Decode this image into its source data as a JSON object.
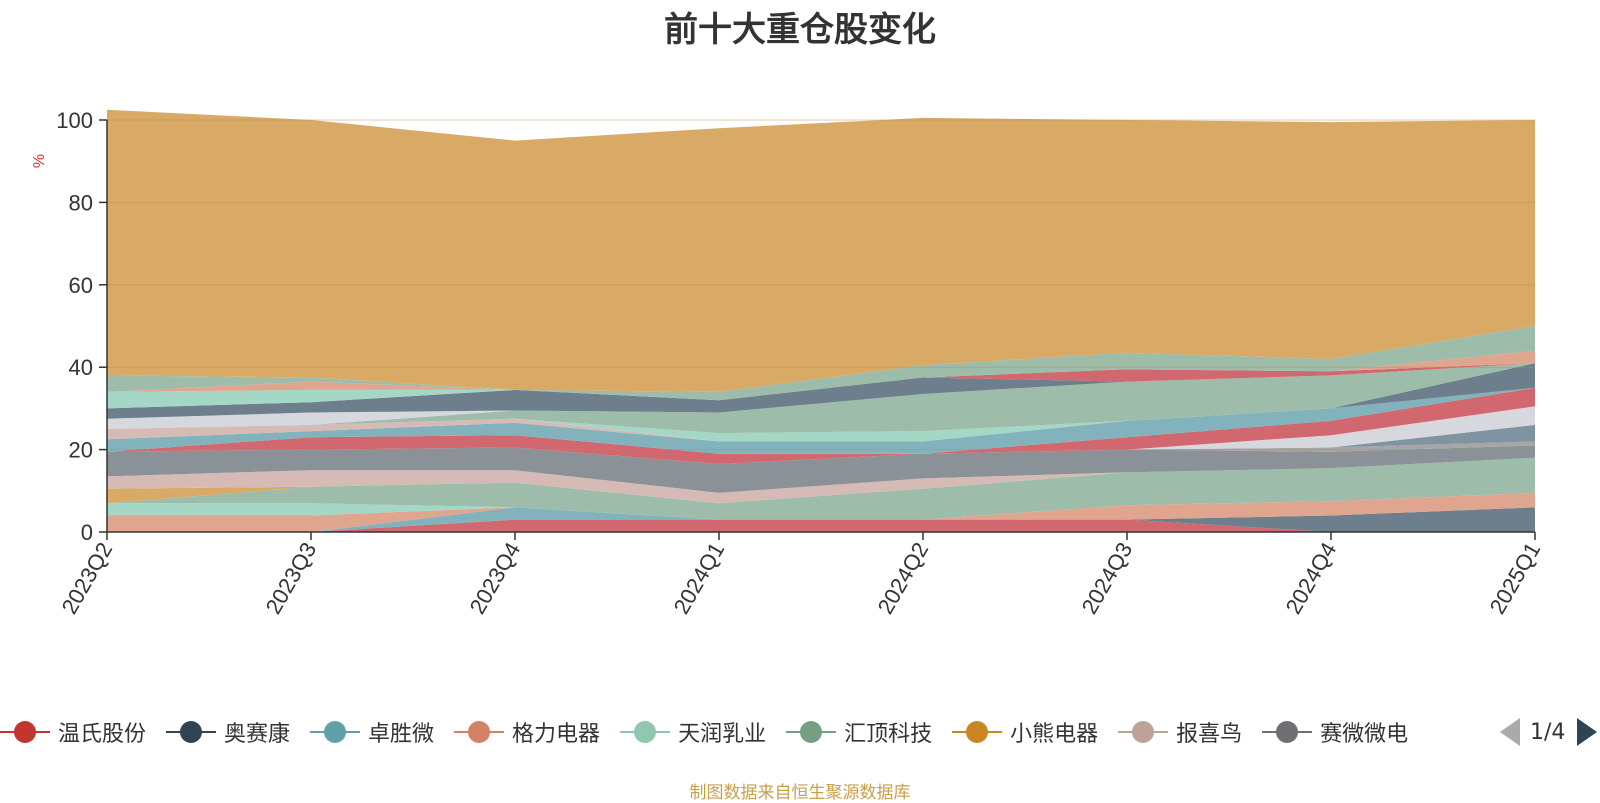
{
  "chart_data": {
    "type": "area",
    "stacked": true,
    "title": "前十大重仓股变化",
    "ylabel": "%",
    "ylim": [
      0,
      100
    ],
    "yticks": [
      0,
      20,
      40,
      60,
      80,
      100
    ],
    "grid": true,
    "categories": [
      "2023Q2",
      "2023Q3",
      "2023Q4",
      "2024Q1",
      "2024Q2",
      "2024Q3",
      "2024Q4",
      "2025Q1"
    ],
    "series": [
      {
        "name": "温氏股份",
        "color": "#d1676f",
        "values": [
          0,
          0,
          3,
          3,
          3,
          3,
          0,
          0
        ]
      },
      {
        "name": "奥赛康",
        "color": "#6d7f8c",
        "values": [
          0,
          0,
          0,
          0,
          0,
          0,
          4,
          6
        ]
      },
      {
        "name": "卓胜微",
        "color": "#82b3bd",
        "values": [
          0,
          0,
          3,
          0,
          0,
          0,
          0,
          0
        ]
      },
      {
        "name": "格力电器",
        "color": "#e0a58f",
        "values": [
          4,
          4,
          0,
          0,
          0,
          3.5,
          3.5,
          3.5
        ]
      },
      {
        "name": "天润乳业",
        "color": "#a4d7c5",
        "values": [
          3,
          3,
          0,
          0,
          0,
          0,
          0,
          0
        ]
      },
      {
        "name": "汇顶科技",
        "color": "#9ebcaa",
        "values": [
          0,
          4,
          6,
          4,
          7.5,
          8,
          8,
          8.5
        ]
      },
      {
        "name": "小熊电器",
        "color": "#d9aa66",
        "values": [
          3.5,
          0,
          0,
          0,
          0,
          0,
          0,
          0
        ]
      },
      {
        "name": "报喜鸟",
        "color": "#d6bab5",
        "values": [
          3,
          4,
          3,
          2.5,
          2.5,
          0,
          0,
          0
        ]
      },
      {
        "name": "赛微微电",
        "color": "#8a9298",
        "values": [
          6,
          5,
          5.5,
          7,
          6,
          5.5,
          4,
          3
        ]
      },
      {
        "name": "",
        "color": "#a6a6a6",
        "values": [
          0,
          0,
          0,
          0,
          0,
          0,
          1,
          1
        ]
      },
      {
        "name": "",
        "color": "#8093a0",
        "values": [
          0,
          0,
          0,
          0,
          0,
          0,
          0,
          4
        ]
      },
      {
        "name": "",
        "color": "#d6d8de",
        "values": [
          0,
          0,
          0,
          0,
          0,
          0,
          3,
          4.5
        ]
      },
      {
        "name": "",
        "color": "#d1676f",
        "values": [
          0,
          3,
          3,
          2.5,
          0,
          3,
          3.5,
          4.5
        ]
      },
      {
        "name": "",
        "color": "#82b3bd",
        "values": [
          3,
          1.5,
          3,
          3,
          3,
          4,
          3,
          0
        ]
      },
      {
        "name": "",
        "color": "#6d7f8c",
        "values": [
          0,
          0,
          0,
          0,
          0,
          0,
          0,
          6
        ]
      },
      {
        "name": "",
        "color": "#9ebcaa",
        "values": [
          0,
          0,
          0,
          0,
          0,
          0,
          0,
          0
        ]
      },
      {
        "name": "",
        "color": "#d6bab5",
        "values": [
          2.5,
          1.5,
          1,
          0,
          0,
          0,
          0,
          0
        ]
      },
      {
        "name": "",
        "color": "#a4d7c5",
        "values": [
          0,
          0,
          0,
          2,
          2.5,
          0,
          0,
          0
        ]
      },
      {
        "name": "",
        "color": "#9ebcaa",
        "values": [
          0,
          0,
          2,
          5,
          9,
          9.5,
          8,
          0
        ]
      },
      {
        "name": "",
        "color": "#d6d8de",
        "values": [
          2.5,
          3,
          0,
          0,
          0,
          0,
          0,
          0
        ]
      },
      {
        "name": "",
        "color": "#6d7f8c",
        "values": [
          2.5,
          2.5,
          5,
          3,
          4,
          0,
          0,
          0
        ]
      },
      {
        "name": "",
        "color": "#d1676f",
        "values": [
          0,
          0,
          0,
          0,
          0,
          3,
          1,
          0
        ]
      },
      {
        "name": "",
        "color": "#a4d7c5",
        "values": [
          4,
          3,
          0,
          0,
          0,
          0,
          0,
          0
        ]
      },
      {
        "name": "",
        "color": "#e0a58f",
        "values": [
          0,
          2,
          0,
          0,
          0,
          0,
          0,
          3
        ]
      },
      {
        "name": "",
        "color": "#9ebcaa",
        "values": [
          4,
          1,
          0,
          2,
          3,
          4,
          3,
          6
        ]
      },
      {
        "name": "",
        "color": "#d9aa66",
        "values": [
          64.5,
          62.5,
          60.5,
          64,
          60,
          56.5,
          57.5,
          50
        ]
      }
    ]
  },
  "legend": {
    "items": [
      {
        "label": "温氏股份",
        "color": "#c23531"
      },
      {
        "label": "奥赛康",
        "color": "#2f4554"
      },
      {
        "label": "卓胜微",
        "color": "#61a0a8"
      },
      {
        "label": "格力电器",
        "color": "#d48265"
      },
      {
        "label": "天润乳业",
        "color": "#91c7ae"
      },
      {
        "label": "汇顶科技",
        "color": "#749f83"
      },
      {
        "label": "小熊电器",
        "color": "#ca8622"
      },
      {
        "label": "报喜鸟",
        "color": "#bda29a"
      },
      {
        "label": "赛微微电",
        "color": "#6e7074"
      }
    ],
    "page": "1/4"
  },
  "source_note": "制图数据来自恒生聚源数据库"
}
